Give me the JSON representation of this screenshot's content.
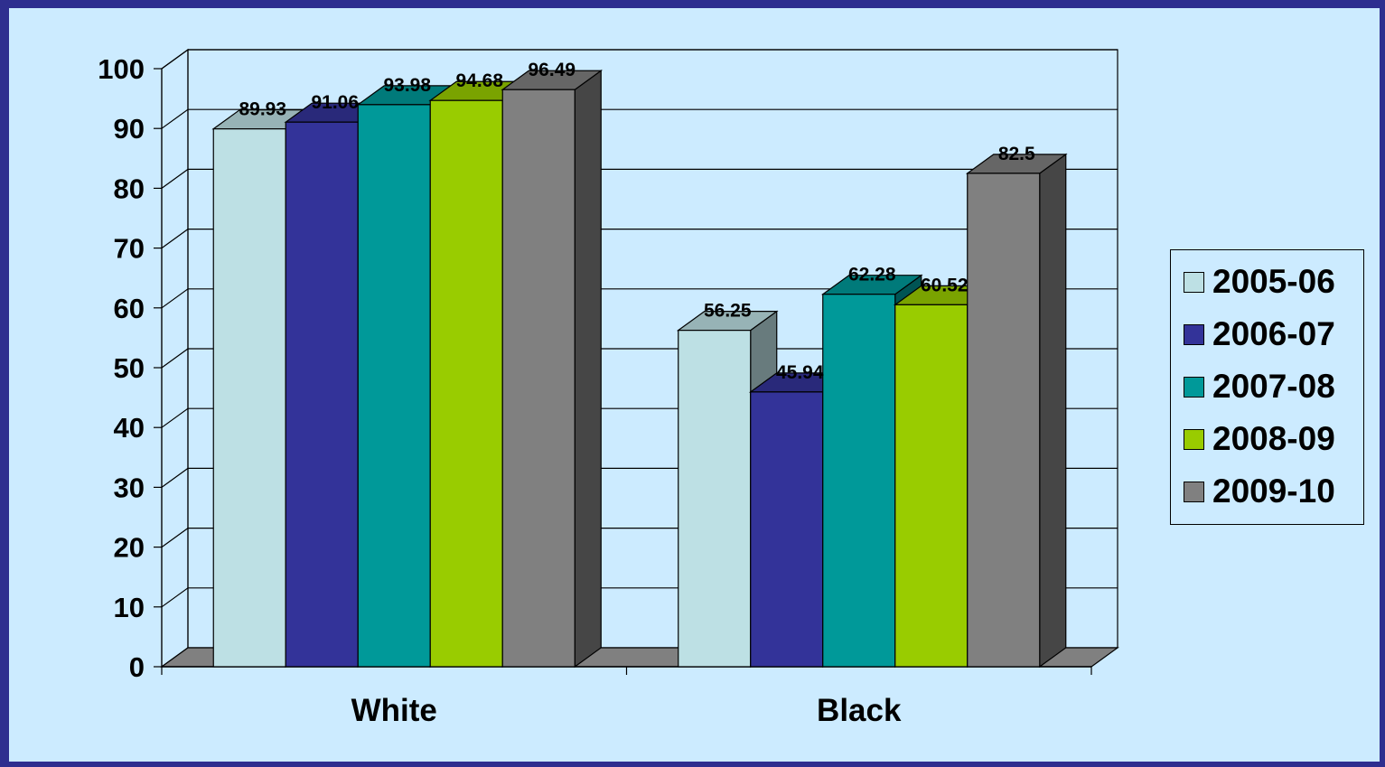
{
  "chart_data": {
    "type": "bar",
    "categories": [
      "White",
      "Black"
    ],
    "series": [
      {
        "name": "2005-06",
        "color": "#BDE0E4",
        "values": [
          89.93,
          56.25
        ]
      },
      {
        "name": "2006-07",
        "color": "#333399",
        "values": [
          91.06,
          45.94
        ]
      },
      {
        "name": "2007-08",
        "color": "#009999",
        "values": [
          93.98,
          62.28
        ]
      },
      {
        "name": "2008-09",
        "color": "#99CC00",
        "values": [
          94.68,
          60.52
        ]
      },
      {
        "name": "2009-10",
        "color": "#808080",
        "values": [
          96.49,
          82.5
        ]
      }
    ],
    "data_labels": [
      [
        "89.93",
        "56.25"
      ],
      [
        "91.06",
        "45.94"
      ],
      [
        "93.98",
        "62.28"
      ],
      [
        "94.68",
        "60.52"
      ],
      [
        "96.49",
        "82.5"
      ]
    ],
    "yticks": [
      "0",
      "10",
      "20",
      "30",
      "40",
      "50",
      "60",
      "70",
      "80",
      "90",
      "100"
    ],
    "ylim": [
      0,
      100
    ],
    "title": "",
    "xlabel": "",
    "ylabel": "",
    "grid": true,
    "three_d": true,
    "legend_position": "right"
  }
}
